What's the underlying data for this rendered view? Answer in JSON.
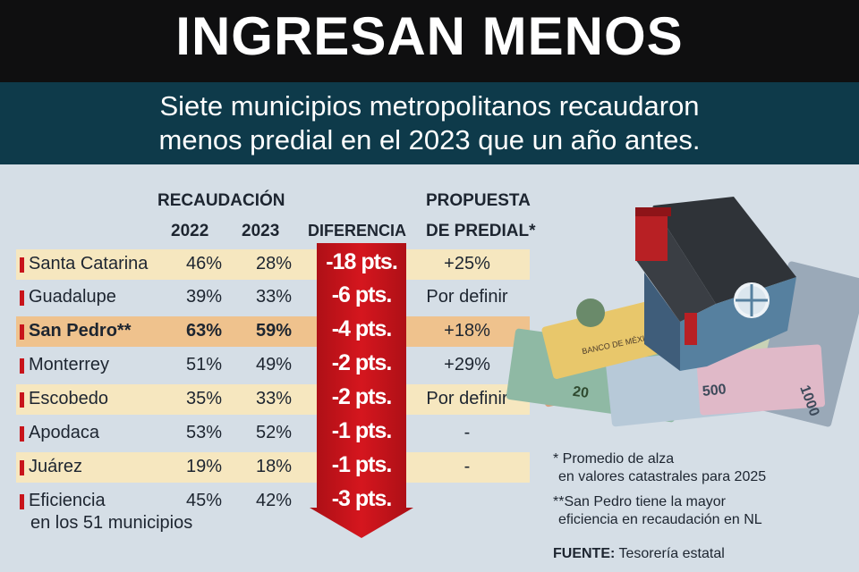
{
  "header": {
    "title": "INGRESAN MENOS",
    "subtitle_line1": "Siete municipios metropolitanos recaudaron",
    "subtitle_line2": "menos predial en el 2023 que un año antes."
  },
  "table": {
    "recaudacion_header": "RECAUDACIÓN",
    "col_2022": "2022",
    "col_2023": "2023",
    "col_diferencia": "DIFERENCIA",
    "col_propuesta_line1": "PROPUESTA",
    "col_propuesta_line2": "DE PREDIAL*",
    "rows": [
      {
        "name": "Santa Catarina",
        "v2022": "46%",
        "v2023": "28%",
        "diff": "-18 pts.",
        "propuesta": "+25%"
      },
      {
        "name": "Guadalupe",
        "v2022": "39%",
        "v2023": "33%",
        "diff": "-6 pts.",
        "propuesta": "Por definir"
      },
      {
        "name": "San Pedro**",
        "v2022": "63%",
        "v2023": "59%",
        "diff": "-4 pts.",
        "propuesta": "+18%"
      },
      {
        "name": "Monterrey",
        "v2022": "51%",
        "v2023": "49%",
        "diff": "-2 pts.",
        "propuesta": "+29%"
      },
      {
        "name": "Escobedo",
        "v2022": "35%",
        "v2023": "33%",
        "diff": "-2 pts.",
        "propuesta": "Por definir"
      },
      {
        "name": "Apodaca",
        "v2022": "53%",
        "v2023": "52%",
        "diff": "-1 pts.",
        "propuesta": "-"
      },
      {
        "name": "Juárez",
        "v2022": "19%",
        "v2023": "18%",
        "diff": "-1 pts.",
        "propuesta": "-"
      },
      {
        "name": "Eficiencia",
        "name_line2": "en los 51 municipios",
        "v2022": "45%",
        "v2023": "42%",
        "diff": "-3 pts.",
        "propuesta": ""
      }
    ]
  },
  "notes": {
    "note1_line1": "* Promedio de alza",
    "note1_line2": "en valores catastrales para 2025",
    "note2_line1": "**San Pedro tiene la mayor",
    "note2_line2": "eficiencia en recaudación en NL",
    "source_label": "FUENTE:",
    "source_value": "Tesorería estatal"
  },
  "image": {
    "house_logo_text": "BANCO DE MÉXICO"
  },
  "colors": {
    "title_bg": "#0f0f10",
    "subtitle_bg": "#0e3a4a",
    "arrow": "#c8141b",
    "row_alt": "#f6e7bf",
    "row_highlight": "#efc28d"
  }
}
